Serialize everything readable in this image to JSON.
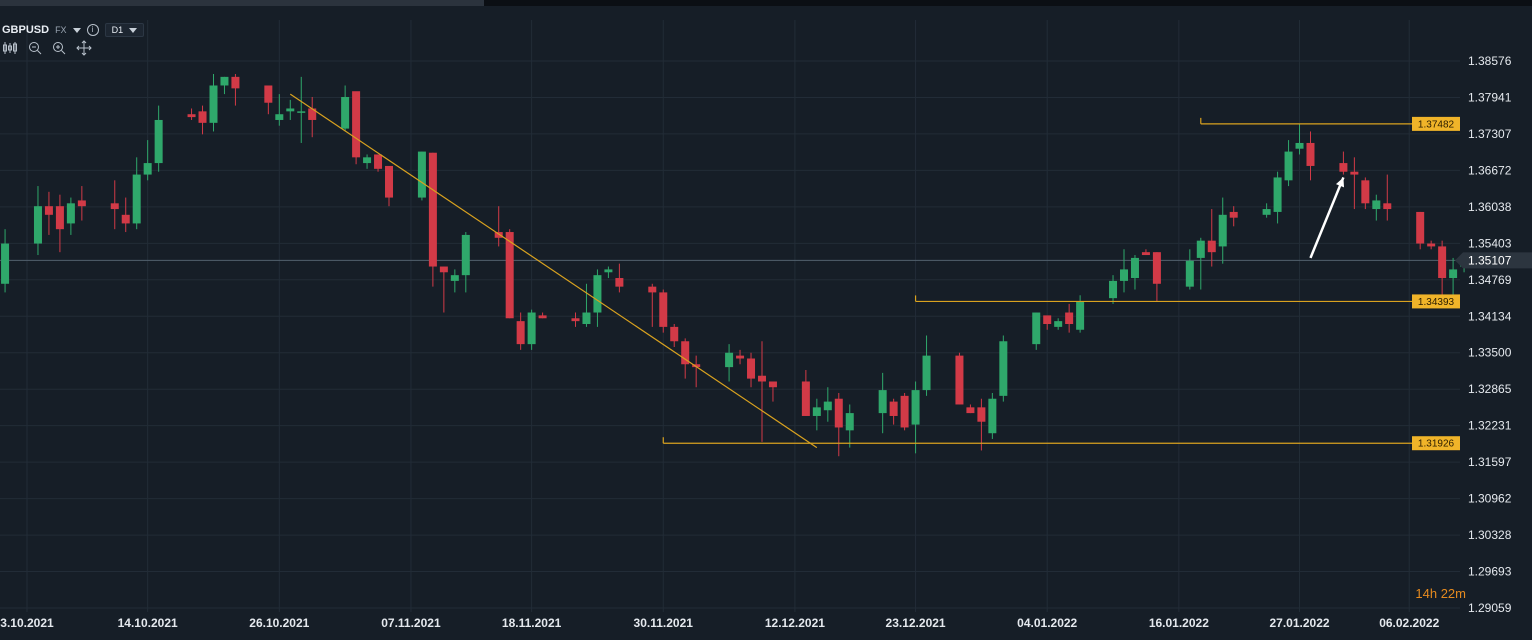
{
  "header": {
    "symbol": "GBPUSD",
    "market": "FX",
    "timeframe": "D1"
  },
  "toolbar_icons": [
    "candles-icon",
    "zoom-out-icon",
    "zoom-in-icon",
    "move-icon"
  ],
  "timer": {
    "hours": "14",
    "h_unit": "h",
    "minutes": "22",
    "m_unit": "m"
  },
  "colors": {
    "background": "#161e27",
    "grid": "#222c37",
    "up": "#2fa86b",
    "down": "#d23a47",
    "line": "#d9a21f",
    "label_bg": "#f0b429",
    "current_bg": "#2c353f",
    "axis_text": "#e5e9ee",
    "arrow": "#ffffff"
  },
  "chart_data": {
    "type": "candlestick",
    "instrument": "GBPUSD",
    "timeframe": "D1",
    "ylim": [
      1.289,
      1.392
    ],
    "y_ticks": [
      "1.38576",
      "1.37941",
      "1.37307",
      "1.36672",
      "1.36038",
      "1.35403",
      "1.34769",
      "1.34134",
      "1.33500",
      "1.32865",
      "1.32231",
      "1.31597",
      "1.30962",
      "1.30328",
      "1.29693",
      "1.29059"
    ],
    "x_ticks": [
      "3.10.2021",
      "14.10.2021",
      "26.10.2021",
      "07.11.2021",
      "18.11.2021",
      "30.11.2021",
      "12.12.2021",
      "23.12.2021",
      "04.01.2022",
      "16.01.2022",
      "27.01.2022",
      "06.02.2022"
    ],
    "current_price": "1.35107",
    "levels": [
      {
        "label": "1.37482",
        "value": 1.37482,
        "from": "18.01.2022"
      },
      {
        "label": "1.34393",
        "value": 1.34393,
        "from": "23.12.2021"
      },
      {
        "label": "1.31926",
        "value": 1.31926,
        "from": "30.11.2021"
      }
    ],
    "trendline": {
      "from": {
        "date": "27.10.2021",
        "price": 1.38
      },
      "to": {
        "date": "14.12.2021",
        "price": 1.3185
      }
    },
    "arrow": {
      "from": {
        "date": "28.01.2022",
        "price": 1.3515
      },
      "to": {
        "date": "31.01.2022",
        "price": 1.3655
      }
    },
    "candles": [
      {
        "date": "01.10.2021",
        "o": 1.347,
        "h": 1.3565,
        "l": 1.3455,
        "c": 1.354
      },
      {
        "date": "04.10.2021",
        "o": 1.354,
        "h": 1.364,
        "l": 1.352,
        "c": 1.3605
      },
      {
        "date": "05.10.2021",
        "o": 1.3605,
        "h": 1.363,
        "l": 1.3555,
        "c": 1.359
      },
      {
        "date": "06.10.2021",
        "o": 1.3605,
        "h": 1.3625,
        "l": 1.3525,
        "c": 1.3565
      },
      {
        "date": "07.10.2021",
        "o": 1.3575,
        "h": 1.362,
        "l": 1.3555,
        "c": 1.361
      },
      {
        "date": "08.10.2021",
        "o": 1.3615,
        "h": 1.364,
        "l": 1.358,
        "c": 1.3605
      },
      {
        "date": "11.10.2021",
        "o": 1.361,
        "h": 1.365,
        "l": 1.3565,
        "c": 1.36
      },
      {
        "date": "12.10.2021",
        "o": 1.359,
        "h": 1.362,
        "l": 1.356,
        "c": 1.3575
      },
      {
        "date": "13.10.2021",
        "o": 1.3575,
        "h": 1.369,
        "l": 1.3565,
        "c": 1.366
      },
      {
        "date": "14.10.2021",
        "o": 1.366,
        "h": 1.372,
        "l": 1.365,
        "c": 1.368
      },
      {
        "date": "15.10.2021",
        "o": 1.368,
        "h": 1.378,
        "l": 1.3665,
        "c": 1.3755
      },
      {
        "date": "18.10.2021",
        "o": 1.3765,
        "h": 1.3775,
        "l": 1.3755,
        "c": 1.376
      },
      {
        "date": "19.10.2021",
        "o": 1.377,
        "h": 1.378,
        "l": 1.373,
        "c": 1.375
      },
      {
        "date": "20.10.2021",
        "o": 1.375,
        "h": 1.3835,
        "l": 1.3735,
        "c": 1.3815
      },
      {
        "date": "21.10.2021",
        "o": 1.3815,
        "h": 1.383,
        "l": 1.38,
        "c": 1.383
      },
      {
        "date": "22.10.2021",
        "o": 1.383,
        "h": 1.3835,
        "l": 1.378,
        "c": 1.381
      },
      {
        "date": "25.10.2021",
        "o": 1.3815,
        "h": 1.381,
        "l": 1.3765,
        "c": 1.3785
      },
      {
        "date": "26.10.2021",
        "o": 1.3755,
        "h": 1.38,
        "l": 1.3745,
        "c": 1.3765
      },
      {
        "date": "27.10.2021",
        "o": 1.377,
        "h": 1.379,
        "l": 1.3755,
        "c": 1.3775
      },
      {
        "date": "28.10.2021",
        "o": 1.377,
        "h": 1.383,
        "l": 1.3715,
        "c": 1.377
      },
      {
        "date": "29.10.2021",
        "o": 1.3775,
        "h": 1.3795,
        "l": 1.3725,
        "c": 1.3755
      },
      {
        "date": "01.11.2021",
        "o": 1.374,
        "h": 1.3815,
        "l": 1.3735,
        "c": 1.3795
      },
      {
        "date": "02.11.2021",
        "o": 1.3805,
        "h": 1.38,
        "l": 1.3678,
        "c": 1.369
      },
      {
        "date": "03.11.2021",
        "o": 1.368,
        "h": 1.3695,
        "l": 1.367,
        "c": 1.369
      },
      {
        "date": "04.11.2021",
        "o": 1.3695,
        "h": 1.369,
        "l": 1.3665,
        "c": 1.367
      },
      {
        "date": "05.11.2021",
        "o": 1.3675,
        "h": 1.3665,
        "l": 1.3605,
        "c": 1.362
      },
      {
        "date": "08.11.2021",
        "o": 1.362,
        "h": 1.37,
        "l": 1.3615,
        "c": 1.37
      },
      {
        "date": "09.11.2021",
        "o": 1.3698,
        "h": 1.3698,
        "l": 1.3465,
        "c": 1.35
      },
      {
        "date": "10.11.2021",
        "o": 1.35,
        "h": 1.35,
        "l": 1.342,
        "c": 1.349
      },
      {
        "date": "11.11.2021",
        "o": 1.3475,
        "h": 1.3495,
        "l": 1.3455,
        "c": 1.3485
      },
      {
        "date": "12.11.2021",
        "o": 1.3485,
        "h": 1.356,
        "l": 1.3455,
        "c": 1.3555
      },
      {
        "date": "15.11.2021",
        "o": 1.356,
        "h": 1.3605,
        "l": 1.3535,
        "c": 1.355
      },
      {
        "date": "16.11.2021",
        "o": 1.356,
        "h": 1.3565,
        "l": 1.341,
        "c": 1.341
      },
      {
        "date": "17.11.2021",
        "o": 1.3405,
        "h": 1.342,
        "l": 1.3355,
        "c": 1.3365
      },
      {
        "date": "18.11.2021",
        "o": 1.3365,
        "h": 1.3425,
        "l": 1.3355,
        "c": 1.342
      },
      {
        "date": "19.11.2021",
        "o": 1.3415,
        "h": 1.342,
        "l": 1.341,
        "c": 1.341
      },
      {
        "date": "22.11.2021",
        "o": 1.341,
        "h": 1.342,
        "l": 1.3395,
        "c": 1.3405
      },
      {
        "date": "23.11.2021",
        "o": 1.34,
        "h": 1.347,
        "l": 1.3395,
        "c": 1.342
      },
      {
        "date": "24.11.2021",
        "o": 1.342,
        "h": 1.3495,
        "l": 1.3395,
        "c": 1.3485
      },
      {
        "date": "25.11.2021",
        "o": 1.349,
        "h": 1.35,
        "l": 1.348,
        "c": 1.3495
      },
      {
        "date": "26.11.2021",
        "o": 1.348,
        "h": 1.3505,
        "l": 1.3455,
        "c": 1.3465
      },
      {
        "date": "29.11.2021",
        "o": 1.3465,
        "h": 1.347,
        "l": 1.3395,
        "c": 1.3455
      },
      {
        "date": "30.11.2021",
        "o": 1.3455,
        "h": 1.346,
        "l": 1.3385,
        "c": 1.3395
      },
      {
        "date": "01.12.2021",
        "o": 1.3395,
        "h": 1.34,
        "l": 1.336,
        "c": 1.337
      },
      {
        "date": "02.12.2021",
        "o": 1.337,
        "h": 1.3375,
        "l": 1.3305,
        "c": 1.333
      },
      {
        "date": "03.12.2021",
        "o": 1.333,
        "h": 1.3345,
        "l": 1.329,
        "c": 1.3325
      },
      {
        "date": "06.12.2021",
        "o": 1.3325,
        "h": 1.3365,
        "l": 1.33,
        "c": 1.335
      },
      {
        "date": "07.12.2021",
        "o": 1.3345,
        "h": 1.3355,
        "l": 1.333,
        "c": 1.334
      },
      {
        "date": "08.12.2021",
        "o": 1.334,
        "h": 1.335,
        "l": 1.329,
        "c": 1.3305
      },
      {
        "date": "09.12.2021",
        "o": 1.331,
        "h": 1.337,
        "l": 1.3195,
        "c": 1.33
      },
      {
        "date": "10.12.2021",
        "o": 1.33,
        "h": 1.33,
        "l": 1.3265,
        "c": 1.329
      },
      {
        "date": "13.12.2021",
        "o": 1.33,
        "h": 1.332,
        "l": 1.324,
        "c": 1.324
      },
      {
        "date": "14.12.2021",
        "o": 1.324,
        "h": 1.327,
        "l": 1.3215,
        "c": 1.3255
      },
      {
        "date": "15.12.2021",
        "o": 1.325,
        "h": 1.329,
        "l": 1.323,
        "c": 1.3265
      },
      {
        "date": "16.12.2021",
        "o": 1.327,
        "h": 1.328,
        "l": 1.317,
        "c": 1.322
      },
      {
        "date": "17.12.2021",
        "o": 1.3215,
        "h": 1.326,
        "l": 1.3185,
        "c": 1.3245
      },
      {
        "date": "20.12.2021",
        "o": 1.3245,
        "h": 1.3315,
        "l": 1.321,
        "c": 1.3285
      },
      {
        "date": "21.12.2021",
        "o": 1.3265,
        "h": 1.327,
        "l": 1.3225,
        "c": 1.324
      },
      {
        "date": "22.12.2021",
        "o": 1.3275,
        "h": 1.328,
        "l": 1.3215,
        "c": 1.322
      },
      {
        "date": "23.12.2021",
        "o": 1.3225,
        "h": 1.33,
        "l": 1.3175,
        "c": 1.3285
      },
      {
        "date": "24.12.2021",
        "o": 1.3285,
        "h": 1.338,
        "l": 1.3275,
        "c": 1.3345
      },
      {
        "date": "27.12.2021",
        "o": 1.3345,
        "h": 1.335,
        "l": 1.326,
        "c": 1.326
      },
      {
        "date": "28.12.2021",
        "o": 1.3255,
        "h": 1.326,
        "l": 1.3245,
        "c": 1.3245
      },
      {
        "date": "29.12.2021",
        "o": 1.3255,
        "h": 1.327,
        "l": 1.318,
        "c": 1.323
      },
      {
        "date": "30.12.2021",
        "o": 1.321,
        "h": 1.328,
        "l": 1.32,
        "c": 1.327
      },
      {
        "date": "31.12.2021",
        "o": 1.3275,
        "h": 1.338,
        "l": 1.3265,
        "c": 1.337
      },
      {
        "date": "03.01.2022",
        "o": 1.3365,
        "h": 1.342,
        "l": 1.3355,
        "c": 1.342
      },
      {
        "date": "04.01.2022",
        "o": 1.3415,
        "h": 1.341,
        "l": 1.339,
        "c": 1.34
      },
      {
        "date": "05.01.2022",
        "o": 1.3395,
        "h": 1.341,
        "l": 1.339,
        "c": 1.3405
      },
      {
        "date": "06.01.2022",
        "o": 1.342,
        "h": 1.3435,
        "l": 1.3385,
        "c": 1.34
      },
      {
        "date": "07.01.2022",
        "o": 1.339,
        "h": 1.345,
        "l": 1.3385,
        "c": 1.344
      },
      {
        "date": "10.01.2022",
        "o": 1.3445,
        "h": 1.3485,
        "l": 1.3435,
        "c": 1.3475
      },
      {
        "date": "11.01.2022",
        "o": 1.3475,
        "h": 1.353,
        "l": 1.3455,
        "c": 1.3495
      },
      {
        "date": "12.01.2022",
        "o": 1.348,
        "h": 1.352,
        "l": 1.346,
        "c": 1.3515
      },
      {
        "date": "13.01.2022",
        "o": 1.3525,
        "h": 1.353,
        "l": 1.352,
        "c": 1.352
      },
      {
        "date": "14.01.2022",
        "o": 1.3525,
        "h": 1.3525,
        "l": 1.344,
        "c": 1.347
      },
      {
        "date": "17.01.2022",
        "o": 1.3465,
        "h": 1.353,
        "l": 1.346,
        "c": 1.351
      },
      {
        "date": "18.01.2022",
        "o": 1.3515,
        "h": 1.355,
        "l": 1.346,
        "c": 1.3545
      },
      {
        "date": "19.01.2022",
        "o": 1.3545,
        "h": 1.36,
        "l": 1.35,
        "c": 1.3525
      },
      {
        "date": "20.01.2022",
        "o": 1.3535,
        "h": 1.362,
        "l": 1.3505,
        "c": 1.359
      },
      {
        "date": "21.01.2022",
        "o": 1.3595,
        "h": 1.3605,
        "l": 1.357,
        "c": 1.3585
      },
      {
        "date": "24.01.2022",
        "o": 1.359,
        "h": 1.361,
        "l": 1.3585,
        "c": 1.36
      },
      {
        "date": "25.01.2022",
        "o": 1.3595,
        "h": 1.3665,
        "l": 1.3575,
        "c": 1.3655
      },
      {
        "date": "26.01.2022",
        "o": 1.365,
        "h": 1.372,
        "l": 1.364,
        "c": 1.37
      },
      {
        "date": "27.01.2022",
        "o": 1.3705,
        "h": 1.3748,
        "l": 1.3695,
        "c": 1.3715
      },
      {
        "date": "28.01.2022",
        "o": 1.3715,
        "h": 1.3735,
        "l": 1.365,
        "c": 1.3675
      },
      {
        "date": "31.01.2022",
        "o": 1.368,
        "h": 1.37,
        "l": 1.366,
        "c": 1.3665
      },
      {
        "date": "01.02.2022",
        "o": 1.3665,
        "h": 1.369,
        "l": 1.36,
        "c": 1.366
      },
      {
        "date": "02.02.2022",
        "o": 1.365,
        "h": 1.3655,
        "l": 1.36,
        "c": 1.361
      },
      {
        "date": "03.02.2022",
        "o": 1.36,
        "h": 1.3625,
        "l": 1.358,
        "c": 1.3615
      },
      {
        "date": "04.02.2022",
        "o": 1.361,
        "h": 1.366,
        "l": 1.358,
        "c": 1.36
      },
      {
        "date": "07.02.2022",
        "o": 1.3595,
        "h": 1.3595,
        "l": 1.353,
        "c": 1.354
      },
      {
        "date": "08.02.2022",
        "o": 1.354,
        "h": 1.3545,
        "l": 1.353,
        "c": 1.3535
      },
      {
        "date": "09.02.2022",
        "o": 1.3535,
        "h": 1.3545,
        "l": 1.344,
        "c": 1.348
      },
      {
        "date": "10.02.2022",
        "o": 1.348,
        "h": 1.3515,
        "l": 1.3435,
        "c": 1.3495
      },
      {
        "date": "11.02.2022",
        "o": 1.35,
        "h": 1.3515,
        "l": 1.349,
        "c": 1.351
      }
    ]
  }
}
